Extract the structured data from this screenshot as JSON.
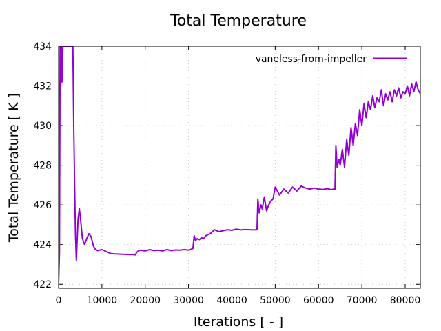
{
  "chart_data": {
    "type": "line",
    "title": "Total Temperature",
    "xlabel": "Iterations [ - ]",
    "ylabel": "Total Temperature [ K ]",
    "xlim": [
      0,
      83500
    ],
    "ylim": [
      421.8,
      434
    ],
    "grid": true,
    "legend_position": "top-right",
    "xticks": [
      0,
      10000,
      20000,
      30000,
      40000,
      50000,
      60000,
      70000,
      80000
    ],
    "xtick_labels": [
      "0",
      "10000",
      "20000",
      "30000",
      "40000",
      "50000",
      "60000",
      "70000",
      "80000"
    ],
    "yticks": [
      422,
      424,
      426,
      428,
      430,
      432,
      434
    ],
    "ytick_labels": [
      "422",
      "424",
      "426",
      "428",
      "430",
      "432",
      "434"
    ],
    "series": [
      {
        "name": "vaneless-from-impeller",
        "color": "#9400d3",
        "x": [
          0,
          200,
          350,
          500,
          650,
          800,
          1000,
          1200,
          1500,
          2000,
          2500,
          3000,
          3300,
          3500,
          3700,
          3900,
          4100,
          4300,
          4500,
          4800,
          5100,
          5500,
          6000,
          6500,
          7000,
          7500,
          8000,
          8500,
          9000,
          10000,
          11000,
          12000,
          13000,
          14000,
          15000,
          16000,
          17000,
          17700,
          18000,
          18500,
          19000,
          20000,
          21000,
          22000,
          23000,
          24000,
          25000,
          26000,
          27000,
          28000,
          29000,
          30000,
          31000,
          31300,
          31600,
          32000,
          32500,
          33000,
          33500,
          34000,
          35000,
          36000,
          37000,
          38000,
          39000,
          40000,
          41000,
          42000,
          43000,
          44000,
          45000,
          45800,
          46000,
          46300,
          46700,
          47000,
          47500,
          48000,
          48500,
          49000,
          49500,
          50000,
          50500,
          51000,
          52000,
          53000,
          54000,
          55000,
          56000,
          57000,
          58000,
          59000,
          60000,
          61000,
          62000,
          63000,
          63500,
          63800,
          64000,
          64300,
          64700,
          65000,
          65500,
          66000,
          66500,
          67000,
          67500,
          68000,
          68500,
          69000,
          69500,
          70000,
          70500,
          71000,
          71500,
          72000,
          72500,
          73000,
          73500,
          74000,
          74500,
          75000,
          75500,
          76000,
          76500,
          77000,
          77500,
          78000,
          78500,
          79000,
          79500,
          80000,
          80500,
          81000,
          81500,
          82000,
          82500,
          83000,
          83500
        ],
        "y": [
          422.0,
          423.6,
          434.0,
          432.0,
          434.0,
          432.2,
          434.0,
          434.0,
          434.0,
          434.0,
          434.0,
          434.0,
          434.0,
          430.0,
          427.0,
          424.5,
          423.2,
          424.3,
          425.3,
          425.8,
          425.2,
          424.3,
          424.0,
          424.3,
          424.55,
          424.4,
          423.95,
          423.75,
          423.7,
          423.75,
          423.65,
          423.55,
          423.53,
          423.52,
          423.51,
          423.5,
          423.5,
          423.48,
          423.6,
          423.7,
          423.72,
          423.68,
          423.75,
          423.7,
          423.72,
          423.68,
          423.75,
          423.7,
          423.73,
          423.72,
          423.75,
          423.72,
          423.8,
          424.45,
          424.2,
          424.3,
          424.25,
          424.35,
          424.3,
          424.45,
          424.55,
          424.75,
          424.65,
          424.7,
          424.75,
          424.72,
          424.78,
          424.74,
          424.76,
          424.75,
          424.74,
          424.75,
          426.3,
          425.6,
          426.0,
          425.8,
          426.4,
          425.7,
          426.0,
          426.2,
          426.3,
          426.9,
          426.7,
          426.5,
          426.8,
          426.6,
          426.9,
          426.7,
          426.95,
          426.85,
          426.8,
          426.85,
          426.8,
          426.78,
          426.82,
          426.77,
          426.8,
          426.8,
          429.0,
          427.9,
          428.3,
          428.0,
          428.8,
          427.9,
          429.3,
          428.5,
          429.9,
          429.0,
          430.1,
          429.5,
          430.8,
          430.0,
          431.1,
          430.4,
          431.2,
          430.8,
          431.5,
          430.9,
          431.4,
          431.2,
          431.8,
          431.0,
          431.6,
          431.3,
          431.7,
          431.2,
          431.8,
          431.5,
          431.9,
          431.4,
          431.7,
          431.6,
          432.0,
          431.5,
          432.1,
          431.7,
          432.2,
          431.8,
          431.6
        ]
      }
    ]
  }
}
